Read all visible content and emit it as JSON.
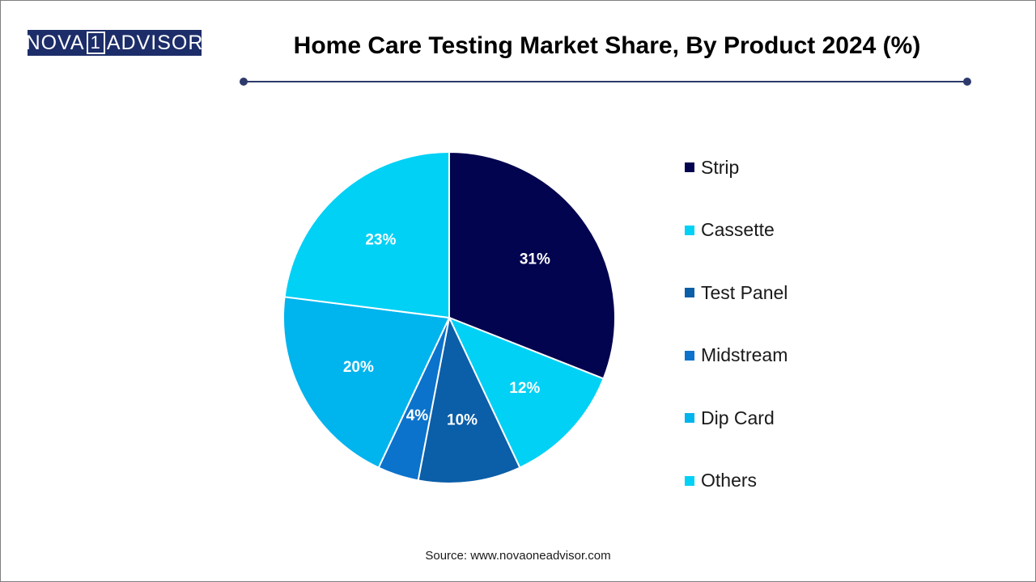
{
  "brand": {
    "logo_left": "NOVA",
    "logo_mid": "1",
    "logo_right": "ADVISOR"
  },
  "header": {
    "title": "Home Care Testing Market Share, By Product 2024 (%)"
  },
  "footer": {
    "source": "Source: www.novaoneadvisor.com"
  },
  "chart_data": {
    "type": "pie",
    "title": "Home Care Testing Market Share, By Product 2024 (%)",
    "unit": "%",
    "start_angle_deg": 0,
    "direction": "clockwise",
    "legend_position": "right",
    "slices": [
      {
        "label": "Strip",
        "value": 31,
        "display": "31%",
        "color": "#03044f"
      },
      {
        "label": "Cassette",
        "value": 12,
        "display": "12%",
        "color": "#00d1f5"
      },
      {
        "label": "Test Panel",
        "value": 10,
        "display": "10%",
        "color": "#0b5ea8"
      },
      {
        "label": "Midstream",
        "value": 4,
        "display": "4%",
        "color": "#0b73cc"
      },
      {
        "label": "Dip Card",
        "value": 20,
        "display": "20%",
        "color": "#00b4ee"
      },
      {
        "label": "Others",
        "value": 23,
        "display": "23%",
        "color": "#00d1f5"
      }
    ]
  }
}
